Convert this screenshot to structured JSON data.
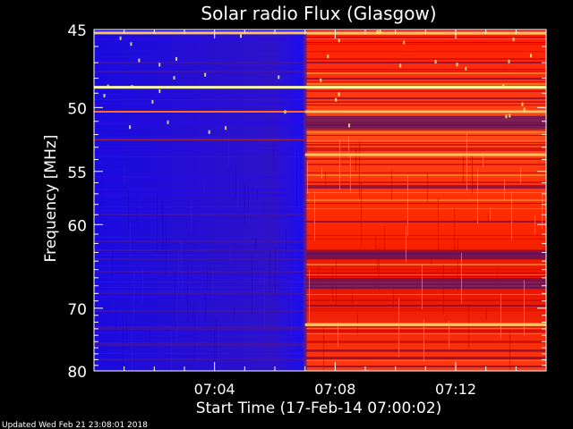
{
  "chart_data": {
    "type": "heatmap",
    "title": "Solar radio Flux (Glasgow)",
    "xlabel": "Start Time (17-Feb-14 07:00:02)",
    "ylabel": "Frequency [MHz]",
    "footer": "Updated Wed Feb 21 23:08:01 2018",
    "x_ticks": [
      {
        "minutes": 4,
        "label": "07:04"
      },
      {
        "minutes": 8,
        "label": "07:08"
      },
      {
        "minutes": 12,
        "label": "07:12"
      }
    ],
    "y_ticks": [
      {
        "mhz": 45,
        "label": "45"
      },
      {
        "mhz": 50,
        "label": "50"
      },
      {
        "mhz": 55,
        "label": "55"
      },
      {
        "mhz": 60,
        "label": "60"
      },
      {
        "mhz": 70,
        "label": "70"
      },
      {
        "mhz": 80,
        "label": "80"
      }
    ],
    "xlim_minutes": [
      0,
      15
    ],
    "y_scale": "reciprocal",
    "ylim_mhz": [
      45,
      80
    ],
    "burst_onset_minutes": 7,
    "colormap": [
      "#1a00ff",
      "#5a1a8a",
      "#8a1030",
      "#ff1a00",
      "#ff9a30",
      "#ffff80"
    ],
    "persistent_lines_mhz": [
      45.2,
      48.6,
      50.3,
      53.6,
      72.4
    ]
  }
}
